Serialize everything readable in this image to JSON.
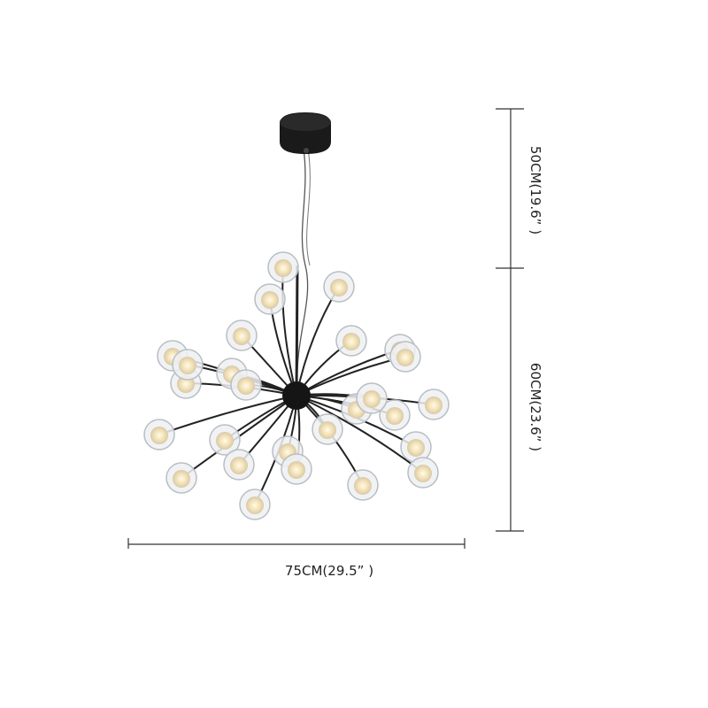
{
  "dimensions": {
    "height_upper": "50CM(19.6” )",
    "height_lower": "60CM(23.6” )",
    "width": "75CM(29.5” )"
  }
}
